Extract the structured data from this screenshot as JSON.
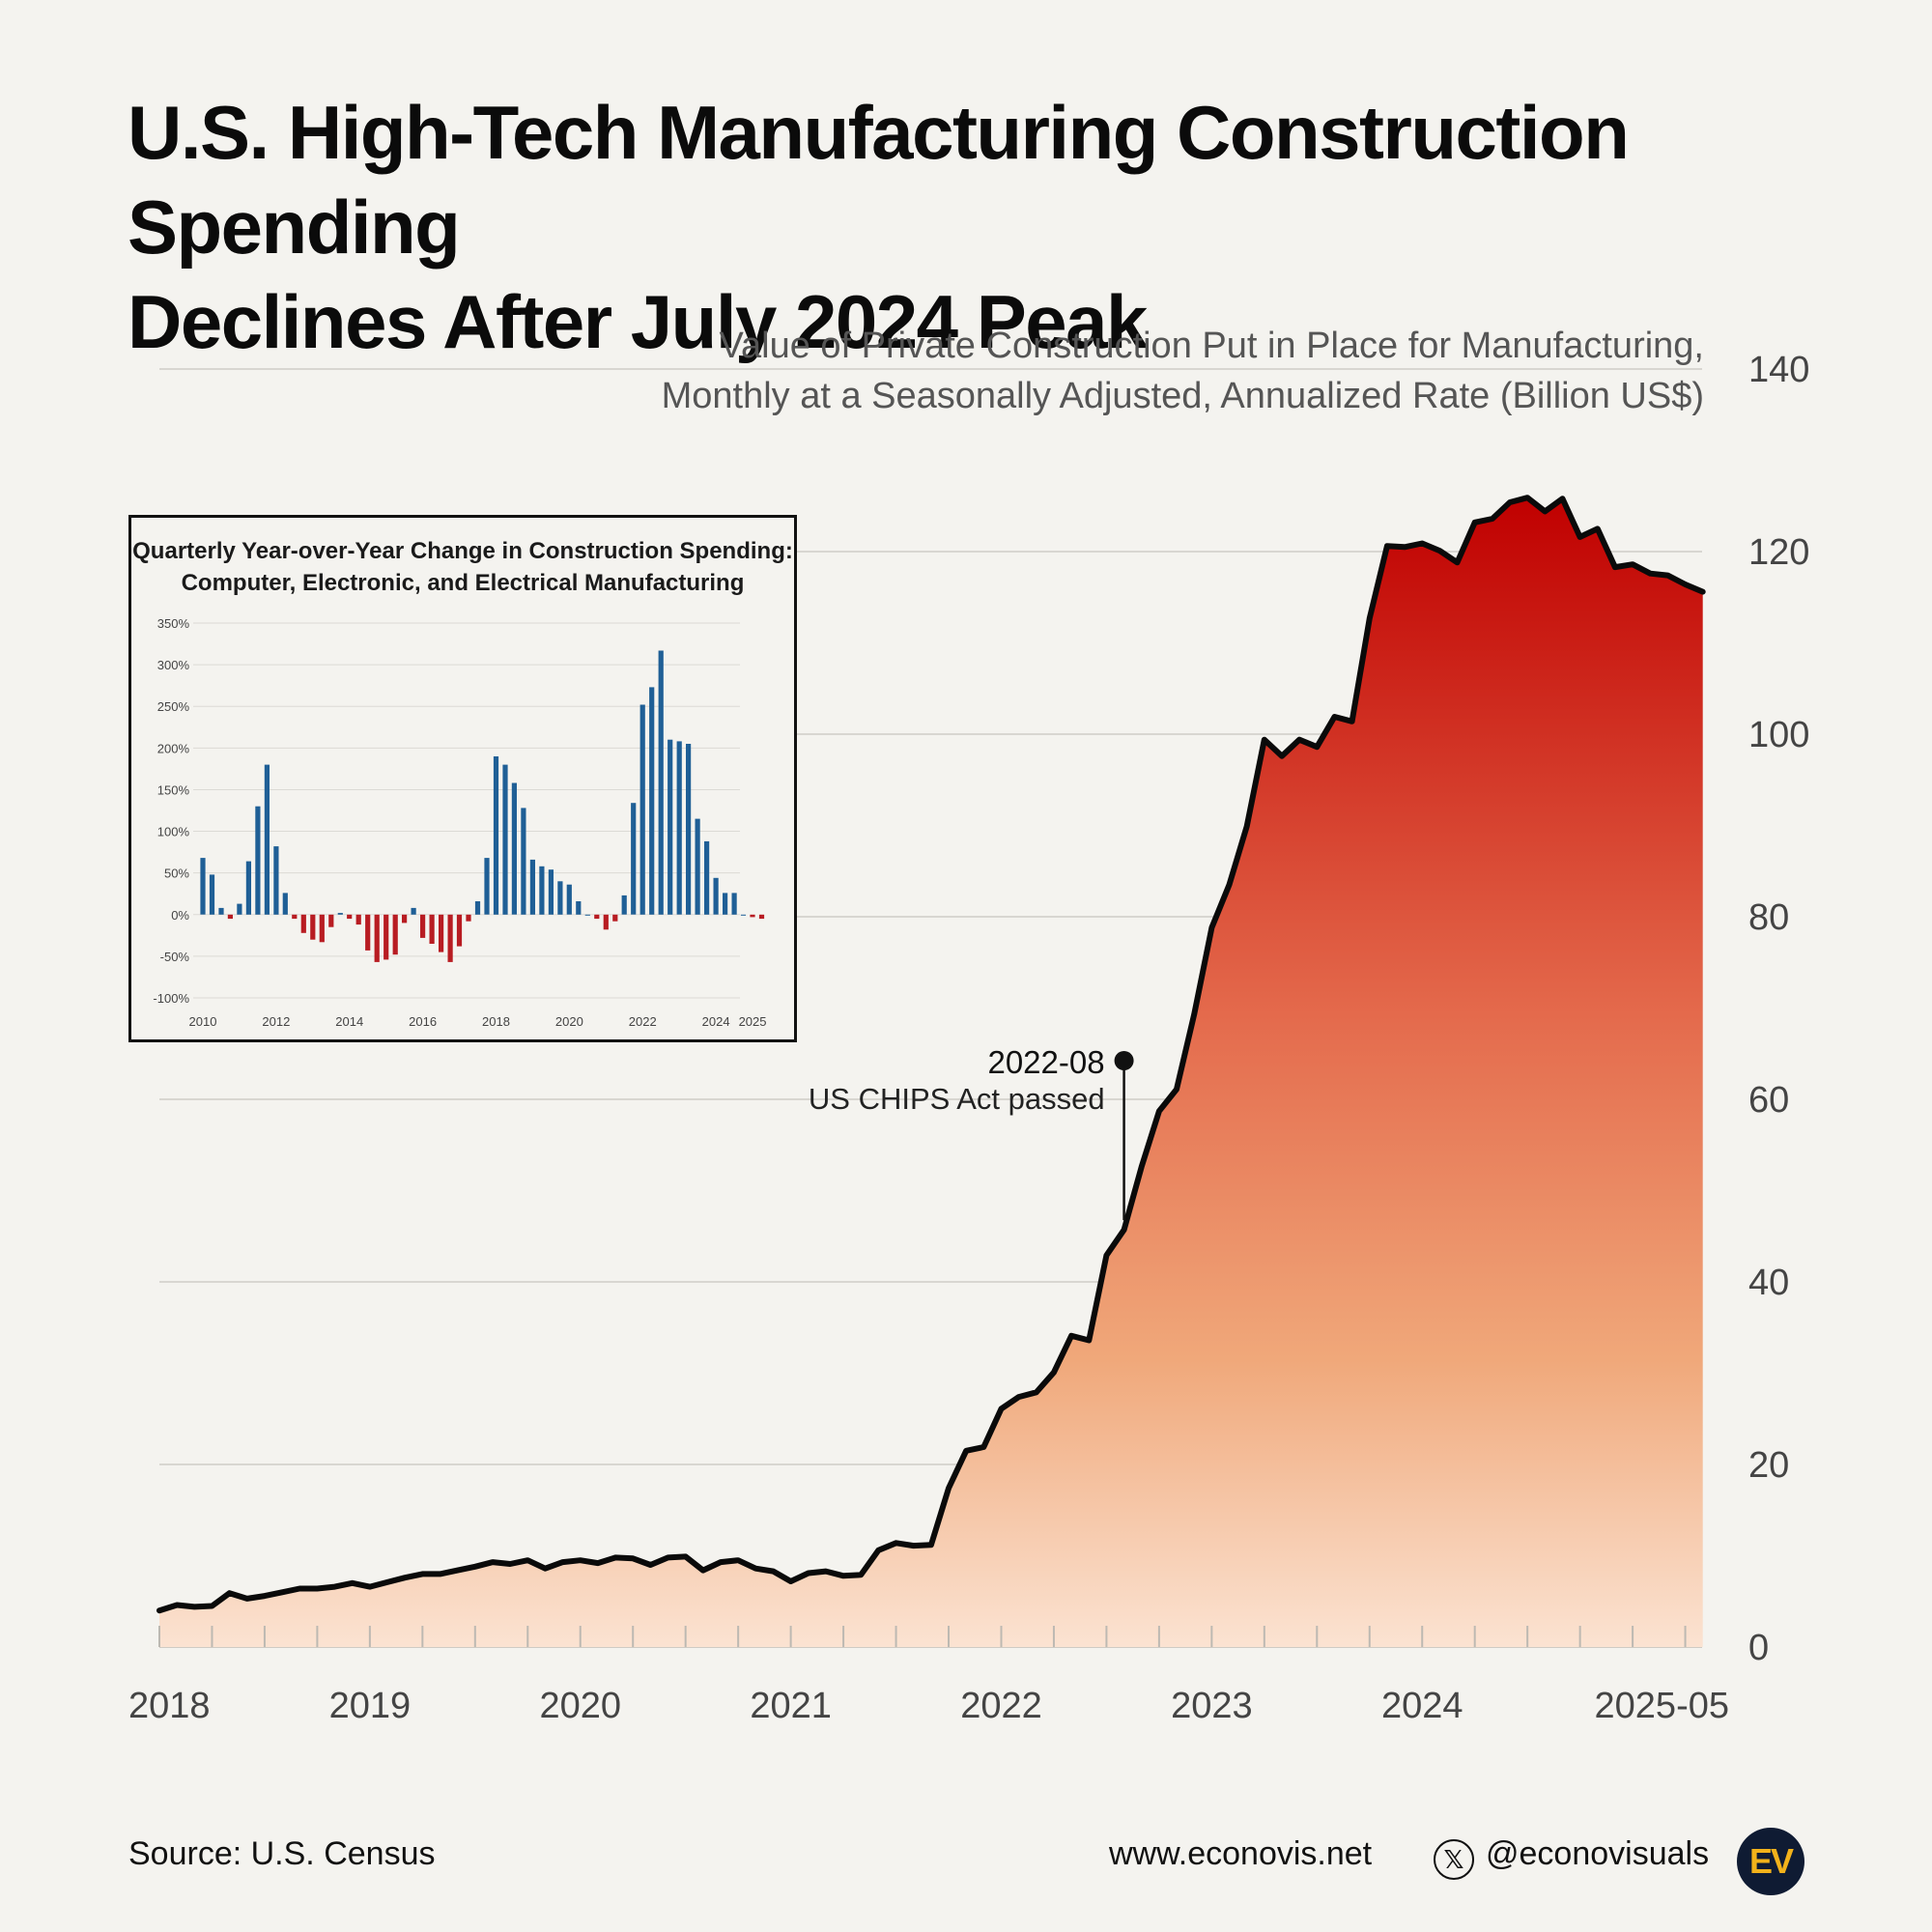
{
  "title": {
    "line1": "U.S. High-Tech Manufacturing Construction Spending",
    "line2": "Declines After July 2024 Peak"
  },
  "subtitle": {
    "line1": "Value of Private Construction Put in Place for Manufacturing,",
    "line2": "Monthly at a Seasonally Adjusted, Annualized Rate (Billion US$)"
  },
  "chart_data": [
    {
      "type": "area",
      "ylim": [
        0,
        140
      ],
      "yticks": [
        0,
        20,
        40,
        60,
        80,
        100,
        120,
        140
      ],
      "x_range": [
        2018.0,
        2025.33
      ],
      "xtick_labels": [
        {
          "x": 2018.0,
          "label": "2018"
        },
        {
          "x": 2019.0,
          "label": "2019"
        },
        {
          "x": 2020.0,
          "label": "2020"
        },
        {
          "x": 2021.0,
          "label": "2021"
        },
        {
          "x": 2022.0,
          "label": "2022"
        },
        {
          "x": 2023.0,
          "label": "2023"
        },
        {
          "x": 2024.0,
          "label": "2024"
        },
        {
          "x": 2025.33,
          "label": "2025-05"
        }
      ],
      "colors": {
        "top": "#c00000",
        "mid": "#e46a4c",
        "low": "#f0a87a",
        "bottom": "#fbe3d2",
        "line": "#0a0a0a"
      },
      "start": "2018-01",
      "values": [
        4.0,
        4.6,
        4.4,
        4.5,
        5.9,
        5.3,
        5.6,
        6.0,
        6.4,
        6.4,
        6.6,
        7.0,
        6.6,
        7.1,
        7.6,
        8.0,
        8.0,
        8.4,
        8.8,
        9.3,
        9.1,
        9.5,
        8.6,
        9.3,
        9.5,
        9.2,
        9.8,
        9.7,
        9.0,
        9.8,
        9.9,
        8.4,
        9.3,
        9.5,
        8.6,
        8.3,
        7.2,
        8.1,
        8.3,
        7.8,
        7.9,
        10.6,
        11.4,
        11.1,
        11.2,
        17.4,
        21.5,
        21.9,
        26.1,
        27.4,
        27.9,
        30.1,
        34.1,
        33.6,
        42.9,
        45.7,
        52.6,
        58.7,
        61.1,
        69.3,
        78.8,
        83.5,
        89.9,
        99.4,
        97.6,
        99.4,
        98.6,
        101.9,
        101.4,
        112.7,
        120.6,
        120.5,
        120.9,
        120.1,
        118.8,
        123.2,
        123.6,
        125.4,
        125.9,
        124.4,
        125.8,
        121.6,
        122.5,
        118.3,
        118.6,
        117.6,
        117.4,
        116.4,
        115.6
      ],
      "annotation": {
        "date": "2022-08",
        "text": "US CHIPS Act passed",
        "value": 45.7
      }
    },
    {
      "type": "bar",
      "title_line1": "Quarterly Year-over-Year Change in Construction Spending:",
      "title_line2": "Computer, Electronic, and Electrical Manufacturing",
      "ylim": [
        -100,
        350
      ],
      "yticks": [
        -100,
        -50,
        0,
        50,
        100,
        150,
        200,
        250,
        300,
        350
      ],
      "ytick_labels": [
        "-100%",
        "-50%",
        "0%",
        "50%",
        "100%",
        "150%",
        "200%",
        "250%",
        "300%",
        "350%"
      ],
      "x_range": [
        2010.0,
        2025.5
      ],
      "xtick_labels": [
        {
          "x": 2010,
          "label": "2010"
        },
        {
          "x": 2012,
          "label": "2012"
        },
        {
          "x": 2014,
          "label": "2014"
        },
        {
          "x": 2016,
          "label": "2016"
        },
        {
          "x": 2018,
          "label": "2018"
        },
        {
          "x": 2020,
          "label": "2020"
        },
        {
          "x": 2022,
          "label": "2022"
        },
        {
          "x": 2024,
          "label": "2024"
        },
        {
          "x": 2025,
          "label": "2025"
        }
      ],
      "colors": {
        "positive": "#1f5f96",
        "negative": "#b81c22"
      },
      "start_year": 2010,
      "quarterly_values": [
        68,
        48,
        8,
        -5,
        13,
        64,
        130,
        180,
        82,
        26,
        -5,
        -22,
        -30,
        -33,
        -15,
        2,
        -5,
        -12,
        -43,
        -57,
        -54,
        -48,
        -10,
        8,
        -28,
        -35,
        -45,
        -57,
        -38,
        -8,
        16,
        68,
        190,
        180,
        158,
        128,
        66,
        58,
        54,
        40,
        36,
        16,
        0,
        -5,
        -18,
        -8,
        23,
        134,
        252,
        273,
        317,
        210,
        208,
        205,
        115,
        88,
        44,
        26,
        26,
        0,
        -3,
        -5
      ]
    }
  ],
  "footer": {
    "source": "Source: U.S. Census",
    "website": "www.econovis.net",
    "x_icon_char": "𝕏",
    "handle": "@econovisuals",
    "logo_text": "EV"
  }
}
